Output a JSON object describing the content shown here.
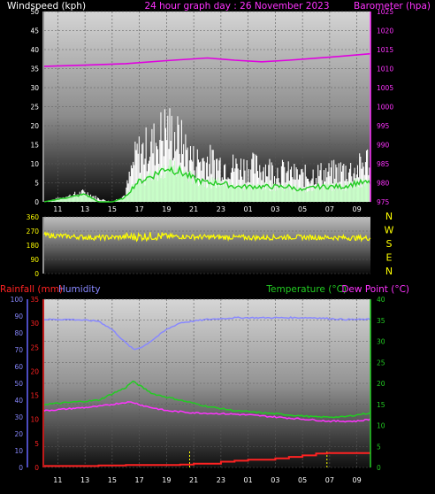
{
  "colors": {
    "background": "#000000",
    "wind_label": "#ffffff",
    "graph_day": "#ff33ff",
    "barometer": "#e000e0",
    "gust": "#ffffff",
    "wind_avg": "#22cc22",
    "wind_dir": "#ffff00",
    "compass": "#ffff00",
    "rainfall": "#ff2222",
    "humidity": "#8888ff",
    "temperature": "#22cc22",
    "dew_point": "#ff33ff",
    "tick_text": "#ffffff",
    "rain_reset_marker": "#ffff00"
  },
  "chart_data": [
    {
      "type": "line",
      "panel": "wind-barometer",
      "title": "24 hour graph day : 26 November 2023",
      "x_tick_labels": [
        "11",
        "13",
        "15",
        "17",
        "19",
        "21",
        "23",
        "01",
        "03",
        "05",
        "07",
        "09"
      ],
      "left_axis": {
        "label": "Windspeed (kph)",
        "ticks": [
          0,
          5,
          10,
          15,
          20,
          25,
          30,
          35,
          40,
          45,
          50
        ],
        "range": [
          0,
          50
        ]
      },
      "right_axis": {
        "label": "Barometer (hpa)",
        "ticks": [
          975,
          980,
          985,
          990,
          995,
          1000,
          1005,
          1010,
          1015,
          1020,
          1025
        ],
        "range": [
          975,
          1025
        ]
      },
      "series": [
        {
          "name": "Barometer",
          "axis": "right",
          "type": "line",
          "hours": [
            0,
            3,
            6,
            9,
            12,
            14,
            16,
            18,
            21,
            24
          ],
          "values": [
            1010.6,
            1010.9,
            1011.3,
            1012.1,
            1012.8,
            1012.2,
            1011.8,
            1012.2,
            1013.0,
            1013.9
          ]
        },
        {
          "axis": "left",
          "type": "gust_bars",
          "hours": [
            0,
            3,
            4,
            5,
            5.9,
            6.8,
            8,
            9,
            10,
            11,
            12,
            13,
            14,
            15,
            16,
            17,
            18,
            19,
            20,
            21,
            22,
            23,
            24
          ],
          "values": [
            0,
            3,
            1,
            0,
            2,
            15,
            18,
            23,
            19,
            13,
            13,
            12,
            11,
            11,
            11,
            10,
            9,
            8,
            9,
            9,
            10,
            10,
            14
          ]
        },
        {
          "axis": "left",
          "type": "average_fill",
          "hours": [
            0,
            3,
            4,
            5,
            5.9,
            6.8,
            8,
            9,
            10,
            11,
            12,
            13,
            14,
            15,
            16,
            17,
            18,
            19,
            20,
            21,
            22,
            23,
            24
          ],
          "values": [
            0,
            2,
            0,
            0,
            1,
            5,
            7,
            9,
            8,
            6,
            5,
            5,
            4,
            4,
            4,
            4,
            4,
            3,
            4,
            4,
            4,
            5,
            5
          ]
        }
      ]
    },
    {
      "type": "line",
      "panel": "wind-direction",
      "x_tick_labels": [],
      "left_axis": {
        "ticks": [
          0,
          90,
          180,
          270,
          360
        ],
        "range": [
          0,
          360
        ]
      },
      "compass_labels": [
        "N",
        "W",
        "S",
        "E",
        "N"
      ],
      "series": [
        {
          "name": "Wind Direction",
          "hours": [
            0,
            2,
            4,
            6,
            8,
            10,
            12,
            14,
            16,
            18,
            20,
            22,
            24
          ],
          "values": [
            245,
            235,
            228,
            232,
            238,
            235,
            232,
            230,
            228,
            232,
            230,
            228,
            225
          ]
        }
      ]
    },
    {
      "type": "line",
      "panel": "rain-temp-humidity",
      "x_tick_labels": [
        "11",
        "13",
        "15",
        "17",
        "19",
        "21",
        "23",
        "01",
        "03",
        "05",
        "07",
        "09"
      ],
      "rain_axis": {
        "label": "Rainfall (mm)",
        "ticks": [
          0,
          5,
          10,
          15,
          20,
          25,
          30,
          35
        ],
        "range": [
          0,
          35
        ]
      },
      "humidity_axis": {
        "label": "Humidity",
        "ticks": [
          0,
          10,
          20,
          30,
          40,
          50,
          60,
          70,
          80,
          90,
          100
        ],
        "range": [
          0,
          100
        ]
      },
      "temperature_axis": {
        "label": "Temperature (°C)",
        "ticks": [
          0,
          5,
          10,
          15,
          20,
          25,
          30,
          35,
          40
        ],
        "range": [
          0,
          40
        ]
      },
      "dew_point_label": "Dew Point (°C)",
      "rain_reset_hours": [
        10.7,
        20.8
      ],
      "series": [
        {
          "name": "Humidity",
          "axis": "humidity",
          "hours": [
            0,
            2,
            4,
            5,
            6,
            6.6,
            7.3,
            8,
            9,
            10,
            12,
            14,
            16,
            18,
            20,
            22,
            24
          ],
          "values": [
            88,
            88,
            87,
            82,
            74,
            70,
            72,
            76,
            82,
            86,
            88,
            89,
            89,
            89,
            89,
            88,
            88
          ]
        },
        {
          "name": "Temperature",
          "axis": "temperature",
          "hours": [
            0,
            2,
            4,
            5,
            6,
            6.5,
            7,
            8,
            10,
            12,
            14,
            16,
            18,
            20,
            22,
            24
          ],
          "values": [
            15,
            15.5,
            16,
            17.5,
            19,
            20.5,
            19.5,
            17.5,
            16,
            14.5,
            13.5,
            13,
            12.5,
            12,
            12,
            13
          ]
        },
        {
          "name": "Dew Point",
          "axis": "temperature",
          "hours": [
            0,
            2,
            4,
            6,
            6.5,
            7.5,
            9,
            11,
            13,
            15,
            17,
            19,
            21,
            23,
            24
          ],
          "values": [
            13.5,
            14,
            14.5,
            15.5,
            15.5,
            14.5,
            13.5,
            13,
            12.8,
            12.5,
            12,
            11.5,
            11,
            11,
            11.5
          ]
        },
        {
          "name": "Rainfall",
          "axis": "rain",
          "hours": [
            0,
            2,
            4,
            6,
            8,
            10,
            10.7,
            11,
            13,
            14,
            15,
            17,
            18,
            19,
            20,
            20.8,
            21.5,
            24
          ],
          "values": [
            0.3,
            0.3,
            0.4,
            0.5,
            0.5,
            0.6,
            0.6,
            0.8,
            1.2,
            1.4,
            1.6,
            1.9,
            2.2,
            2.5,
            2.9,
            3.0,
            3.0,
            3.0
          ]
        }
      ]
    }
  ]
}
